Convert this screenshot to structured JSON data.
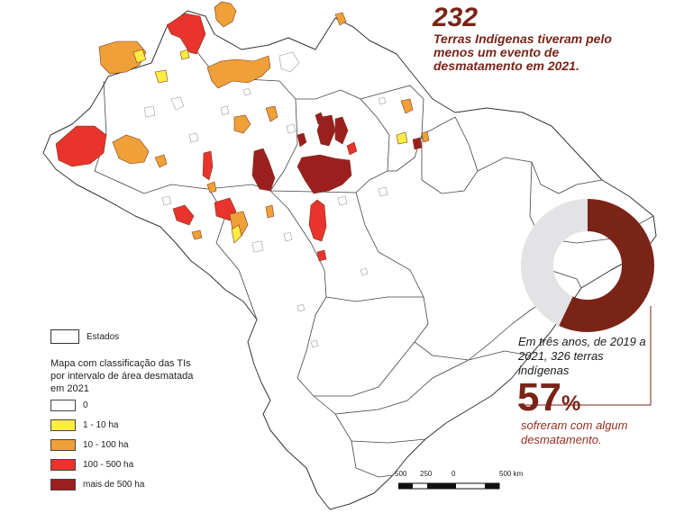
{
  "stat": {
    "number": "232",
    "text": "Terras Indígenas tiveram pelo menos um evento de desmatamento em 2021."
  },
  "donut": {
    "percent": 57,
    "caption": "Em três anos, de 2019 a 2021, 326 terras indígenas",
    "percent_number": "57",
    "percent_symbol": "%",
    "percent_text": "sofreram com algum desmatamento.",
    "fill_color": "#7a2418",
    "rest_color": "#e3e3e6"
  },
  "legend": {
    "states_label": "Estados",
    "title": "Mapa com classificação das TIs por intervalo de área desmatada em 2021",
    "classes": [
      {
        "label": "0",
        "color": "#ffffff"
      },
      {
        "label": "1 - 10 ha",
        "color": "#ffec42"
      },
      {
        "label": "10 - 100 ha",
        "color": "#f0a038"
      },
      {
        "label": "100 - 500 ha",
        "color": "#e8342c"
      },
      {
        "label": "mais de 500 ha",
        "color": "#9c1f1f"
      }
    ]
  },
  "scale": {
    "labels": [
      "500",
      "250",
      "0",
      "500 km"
    ]
  }
}
